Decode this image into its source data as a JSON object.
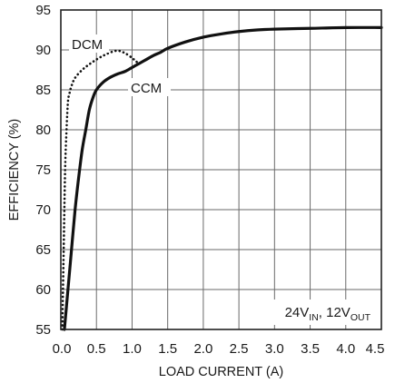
{
  "chart_data": {
    "type": "line",
    "title": "",
    "xlabel": "LOAD CURRENT (A)",
    "ylabel": "EFFICIENCY (%)",
    "xlim": [
      0,
      4.5
    ],
    "ylim": [
      55,
      95
    ],
    "x_ticks": [
      "0.0",
      "0.5",
      "1.0",
      "1.5",
      "2.0",
      "2.5",
      "3.0",
      "3.5",
      "4.0",
      "4.5"
    ],
    "y_ticks": [
      "55",
      "60",
      "65",
      "70",
      "75",
      "80",
      "85",
      "90",
      "95"
    ],
    "grid": true,
    "series": [
      {
        "name": "CCM",
        "style": "solid",
        "color": "#111111",
        "x": [
          0.05,
          0.1,
          0.15,
          0.2,
          0.25,
          0.3,
          0.35,
          0.4,
          0.45,
          0.5,
          0.6,
          0.7,
          0.8,
          0.9,
          1.0,
          1.1,
          1.2,
          1.3,
          1.4,
          1.5,
          1.75,
          2.0,
          2.25,
          2.5,
          2.75,
          3.0,
          3.5,
          4.0,
          4.5
        ],
        "y": [
          55,
          60,
          65,
          70,
          74,
          77.5,
          80,
          82.5,
          84,
          85,
          86,
          86.6,
          87,
          87.3,
          87.8,
          88.3,
          88.8,
          89.3,
          89.7,
          90.2,
          91,
          91.6,
          92,
          92.3,
          92.5,
          92.6,
          92.7,
          92.8,
          92.8
        ]
      },
      {
        "name": "DCM",
        "style": "dotted",
        "color": "#111111",
        "x": [
          0.02,
          0.04,
          0.06,
          0.08,
          0.1,
          0.12,
          0.15,
          0.2,
          0.3,
          0.4,
          0.5,
          0.6,
          0.7,
          0.8,
          0.9,
          1.0,
          1.05,
          1.1
        ],
        "y": [
          55,
          65,
          75,
          80,
          83.5,
          84.5,
          85.5,
          86.5,
          87.5,
          88.2,
          88.8,
          89.3,
          89.7,
          89.9,
          89.6,
          89,
          88.6,
          88.3
        ]
      }
    ],
    "annotations": {
      "dcm_label": "DCM",
      "ccm_label": "CCM",
      "condition": {
        "v_in": "24V",
        "v_in_sub": "IN",
        "separator": ", ",
        "v_out": "12V",
        "v_out_sub": "OUT"
      }
    },
    "colors": {
      "grid": "#6a6a6a",
      "frame": "#222222",
      "line": "#111111"
    }
  }
}
